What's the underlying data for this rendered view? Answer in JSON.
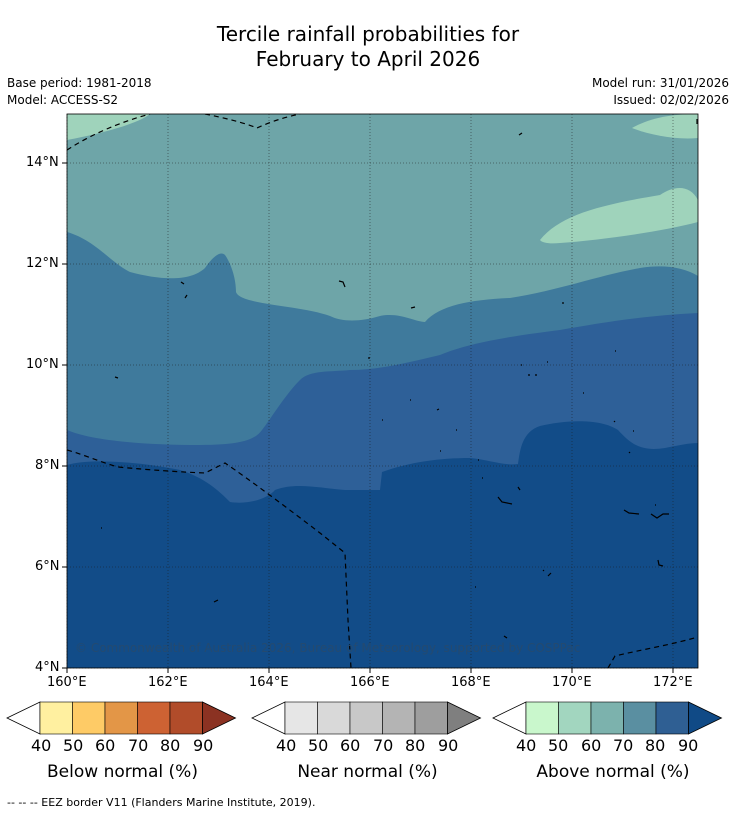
{
  "title": {
    "line1": "Tercile rainfall probabilities for",
    "line2": "February to April 2026"
  },
  "meta": {
    "base_period": "Base period: 1981-2018",
    "model": "Model: ACCESS-S2",
    "model_run": "Model run: 31/01/2026",
    "issued": "Issued: 02/02/2026"
  },
  "map": {
    "copyright": "© Commonwealth of Australia 2026, Bureau of Meteorology, supported by COSPPac",
    "lat_labels": [
      "14°N",
      "12°N",
      "10°N",
      "8°N",
      "6°N",
      "4°N"
    ],
    "lon_labels": [
      "160°E",
      "162°E",
      "164°E",
      "166°E",
      "168°E",
      "170°E",
      "172°E"
    ],
    "colors": {
      "above_50": "#9fd3bb",
      "above_60": "#6ea5a8",
      "above_70": "#3f7a9c",
      "above_80": "#2e6098",
      "above_90": "#124c88"
    }
  },
  "legends": [
    {
      "name": "below",
      "label": "Below normal (%)",
      "ticks": [
        "40",
        "50",
        "60",
        "70",
        "80",
        "90"
      ],
      "colors": [
        "#ffffff",
        "#fff0a0",
        "#fecb66",
        "#e39647",
        "#cd6233",
        "#b14c2a",
        "#8b3222"
      ]
    },
    {
      "name": "near",
      "label": "Near normal (%)",
      "ticks": [
        "40",
        "50",
        "60",
        "70",
        "80",
        "90"
      ],
      "colors": [
        "#ffffff",
        "#e6e6e6",
        "#d9d9d9",
        "#c8c8c8",
        "#b4b4b4",
        "#9e9e9e",
        "#7f7f7f"
      ]
    },
    {
      "name": "above",
      "label": "Above normal (%)",
      "ticks": [
        "40",
        "50",
        "60",
        "70",
        "80",
        "90"
      ],
      "colors": [
        "#ffffff",
        "#c9f7cc",
        "#a2d6bf",
        "#7cb2ad",
        "#5a8fa1",
        "#2f5f93",
        "#104a86"
      ]
    }
  ],
  "footnote": "--  --  -- EEZ border V11 (Flanders Marine Institute, 2019)."
}
